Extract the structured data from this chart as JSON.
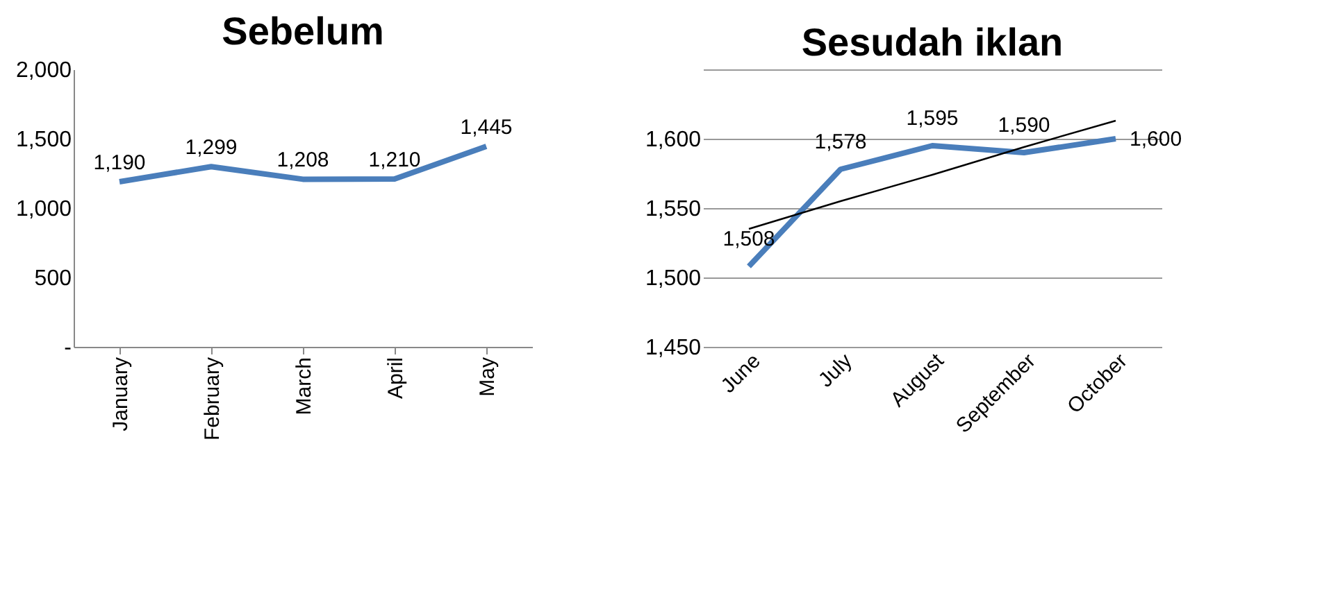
{
  "chart_data": [
    {
      "type": "line",
      "title": "Sebelum",
      "categories": [
        "January",
        "February",
        "March",
        "April",
        "May"
      ],
      "series": [
        {
          "color": "#4a7ebb",
          "values": [
            1190,
            1299,
            1208,
            1210,
            1445
          ],
          "value_labels": [
            "1,190",
            "1,299",
            "1,208",
            "1,210",
            "1,445"
          ]
        }
      ],
      "ylim": [
        0,
        2000
      ],
      "yticks": [
        {
          "value": 0,
          "label": "-"
        },
        500,
        {
          "value": 1000,
          "label": "1,000"
        },
        {
          "value": 1500,
          "label": "1,500"
        },
        {
          "value": 2000,
          "label": "2,000"
        }
      ],
      "grid": false
    },
    {
      "type": "line",
      "title": "Sesudah iklan",
      "categories": [
        "June",
        "July",
        "August",
        "September",
        "October"
      ],
      "series": [
        {
          "color": "#4a7ebb",
          "values": [
            1508,
            1578,
            1595,
            1590,
            1600
          ],
          "value_labels": [
            "1,508",
            "1,578",
            "1,595",
            "1,590",
            "1,600"
          ]
        },
        {
          "color": "#000000",
          "values": [
            1535,
            1555,
            1574,
            1594,
            1613
          ]
        }
      ],
      "ylim": [
        1450,
        1650
      ],
      "yticks": [
        {
          "value": 1450,
          "label": "1,450"
        },
        {
          "value": 1500,
          "label": "1,500"
        },
        {
          "value": 1550,
          "label": "1,550"
        },
        {
          "value": 1600,
          "label": "1,600"
        },
        {
          "value": 1650,
          "label": null
        }
      ],
      "grid": "y"
    }
  ]
}
